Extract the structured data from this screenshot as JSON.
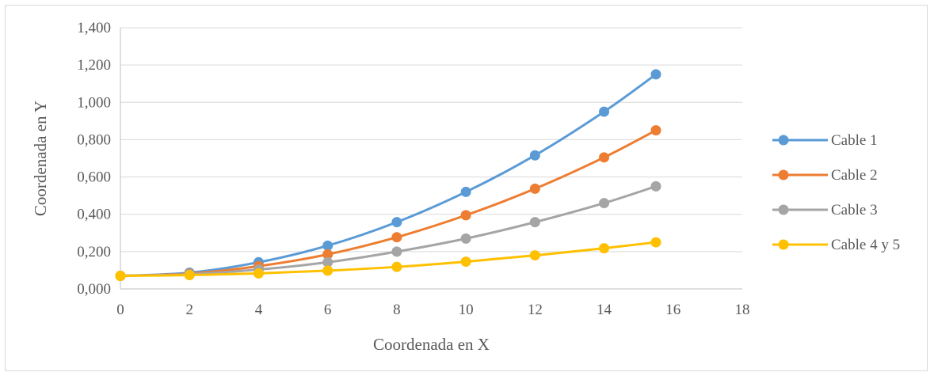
{
  "chart_data": {
    "type": "line",
    "xlabel": "Coordenada en X",
    "ylabel": "Coordenada en Y",
    "xlim": [
      0,
      18
    ],
    "ylim": [
      0,
      1.4
    ],
    "x_ticks": [
      0,
      2,
      4,
      6,
      8,
      10,
      12,
      14,
      16,
      18
    ],
    "x_tick_labels": [
      "0",
      "2",
      "4",
      "6",
      "8",
      "10",
      "12",
      "14",
      "16",
      "18"
    ],
    "y_ticks": [
      0,
      0.2,
      0.4,
      0.6,
      0.8,
      1.0,
      1.2,
      1.4
    ],
    "y_tick_labels": [
      "0,000",
      "0,200",
      "0,400",
      "0,600",
      "0,800",
      "1,000",
      "1,200",
      "1,400"
    ],
    "grid": "horizontal",
    "legend_position": "right",
    "x": [
      0,
      2,
      4,
      6,
      8,
      10,
      12,
      14,
      15.5
    ],
    "series": [
      {
        "name": "Cable 1",
        "color": "#5b9bd5",
        "values": [
          0.07,
          0.087,
          0.143,
          0.232,
          0.358,
          0.52,
          0.716,
          0.95,
          1.15
        ]
      },
      {
        "name": "Cable 2",
        "color": "#ed7d31",
        "values": [
          0.07,
          0.082,
          0.122,
          0.185,
          0.277,
          0.395,
          0.537,
          0.705,
          0.85
        ]
      },
      {
        "name": "Cable 3",
        "color": "#a5a5a5",
        "values": [
          0.07,
          0.079,
          0.104,
          0.143,
          0.2,
          0.27,
          0.358,
          0.46,
          0.55
        ]
      },
      {
        "name": "Cable 4 y 5",
        "color": "#ffc000",
        "values": [
          0.07,
          0.074,
          0.083,
          0.098,
          0.118,
          0.146,
          0.18,
          0.218,
          0.25
        ]
      }
    ]
  }
}
